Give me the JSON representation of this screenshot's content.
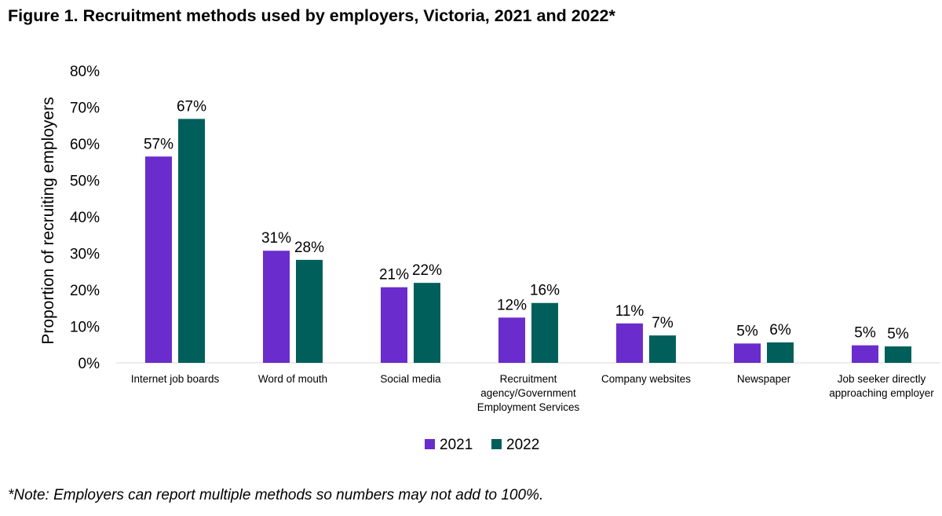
{
  "figure": {
    "title": "Figure 1. Recruitment methods used by employers, Victoria, 2021 and 2022*",
    "note": "*Note: Employers can report multiple methods so numbers may not add to 100%."
  },
  "chart_data": {
    "type": "bar",
    "title": "Figure 1. Recruitment methods used by employers, Victoria, 2021 and 2022*",
    "xlabel": "",
    "ylabel": "Proportion of recruiting employers",
    "ylim": [
      0,
      80
    ],
    "yticks": [
      "0%",
      "10%",
      "20%",
      "30%",
      "40%",
      "50%",
      "60%",
      "70%",
      "80%"
    ],
    "grid": false,
    "legend_position": "bottom",
    "categories": [
      [
        "Internet job boards"
      ],
      [
        "Word of mouth"
      ],
      [
        "Social media"
      ],
      [
        "Recruitment",
        "agency/Government",
        "Employment Services"
      ],
      [
        "Company websites"
      ],
      [
        "Newspaper"
      ],
      [
        "Job seeker directly",
        "approaching employer"
      ]
    ],
    "series": [
      {
        "name": "2021",
        "color": "#6a2ccc",
        "values": [
          56.5,
          30.7,
          20.7,
          12.4,
          10.8,
          5.3,
          4.8
        ],
        "labels": [
          "57%",
          "31%",
          "21%",
          "12%",
          "11%",
          "5%",
          "5%"
        ]
      },
      {
        "name": "2022",
        "color": "#005f5a",
        "values": [
          66.8,
          28.2,
          21.9,
          16.4,
          7.5,
          5.6,
          4.5
        ],
        "labels": [
          "67%",
          "28%",
          "22%",
          "16%",
          "7%",
          "6%",
          "5%"
        ]
      }
    ]
  }
}
